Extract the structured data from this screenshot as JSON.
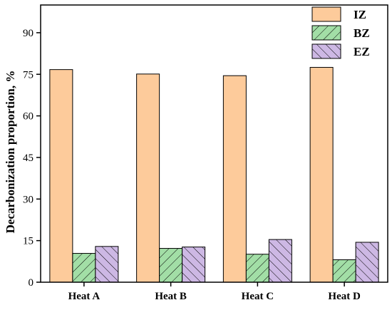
{
  "chart_data": {
    "type": "bar",
    "ylabel": "Decarbonization proportion, %",
    "xlabel": "",
    "categories": [
      "Heat A",
      "Heat B",
      "Heat C",
      "Heat D"
    ],
    "ylim": [
      0,
      100
    ],
    "yticks": [
      "0",
      "15",
      "30",
      "45",
      "60",
      "75",
      "90"
    ],
    "grid": false,
    "legend_position": "top-right",
    "series": [
      {
        "name": "IZ",
        "values": [
          76.7,
          75.1,
          74.5,
          77.5
        ],
        "color": "#FDCB9B",
        "pattern": "solid"
      },
      {
        "name": "BZ",
        "values": [
          10.4,
          12.2,
          10.1,
          8.1
        ],
        "color": "#A2DEA6",
        "pattern": "hatch-right"
      },
      {
        "name": "EZ",
        "values": [
          12.9,
          12.7,
          15.4,
          14.4
        ],
        "color": "#CDB8E4",
        "pattern": "hatch-left"
      }
    ]
  }
}
